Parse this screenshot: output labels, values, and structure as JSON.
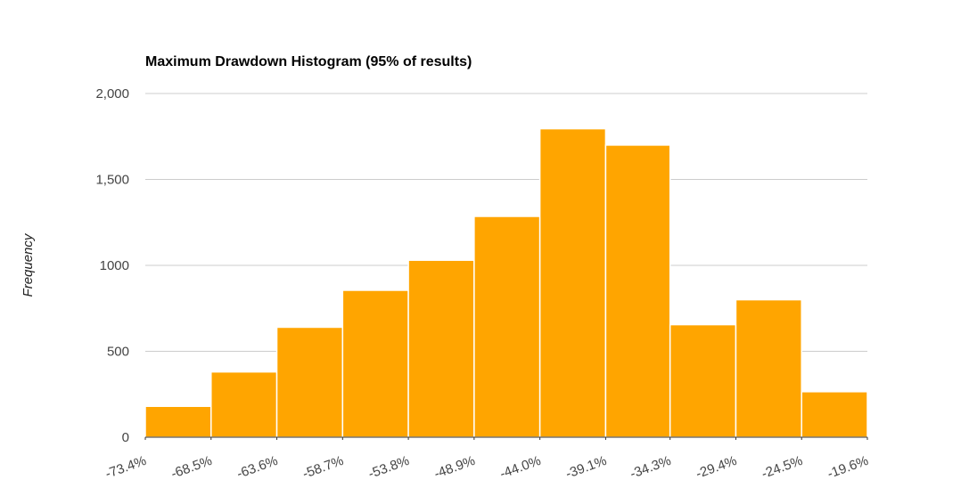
{
  "chart_data": {
    "type": "histogram",
    "title": "Maximum Drawdown Histogram (95% of results)",
    "y_label": "Frequency",
    "bins": [
      -73.4,
      -68.5,
      -63.6,
      -58.7,
      -53.8,
      -48.9,
      -44.0,
      -39.1,
      -34.3,
      -29.4,
      -24.5,
      -19.6
    ],
    "values": [
      180,
      380,
      640,
      855,
      1030,
      1285,
      1795,
      1700,
      655,
      800,
      265
    ],
    "color": "#ffa500",
    "xlim": [
      -73.4,
      -19.6
    ],
    "xticks": [
      {
        "value": -73.4,
        "label": "-73.4%"
      },
      {
        "value": -68.5,
        "label": "-68.5%"
      },
      {
        "value": -63.6,
        "label": "-63.6%"
      },
      {
        "value": -58.7,
        "label": "-58.7%"
      },
      {
        "value": -53.8,
        "label": "-53.8%"
      },
      {
        "value": -48.9,
        "label": "-48.9%"
      },
      {
        "value": -44.0,
        "label": "-44.0%"
      },
      {
        "value": -39.1,
        "label": "-39.1%"
      },
      {
        "value": -34.3,
        "label": "-34.3%"
      },
      {
        "value": -29.4,
        "label": "-29.4%"
      },
      {
        "value": -24.5,
        "label": "-24.5%"
      },
      {
        "value": -19.6,
        "label": "-19.6%"
      }
    ],
    "ylim": [
      0,
      2000
    ],
    "yticks": [
      0,
      500,
      1000,
      {
        "value": 1500,
        "label": "1,500"
      },
      {
        "value": 2000,
        "label": "2,000"
      }
    ],
    "grid": true
  }
}
